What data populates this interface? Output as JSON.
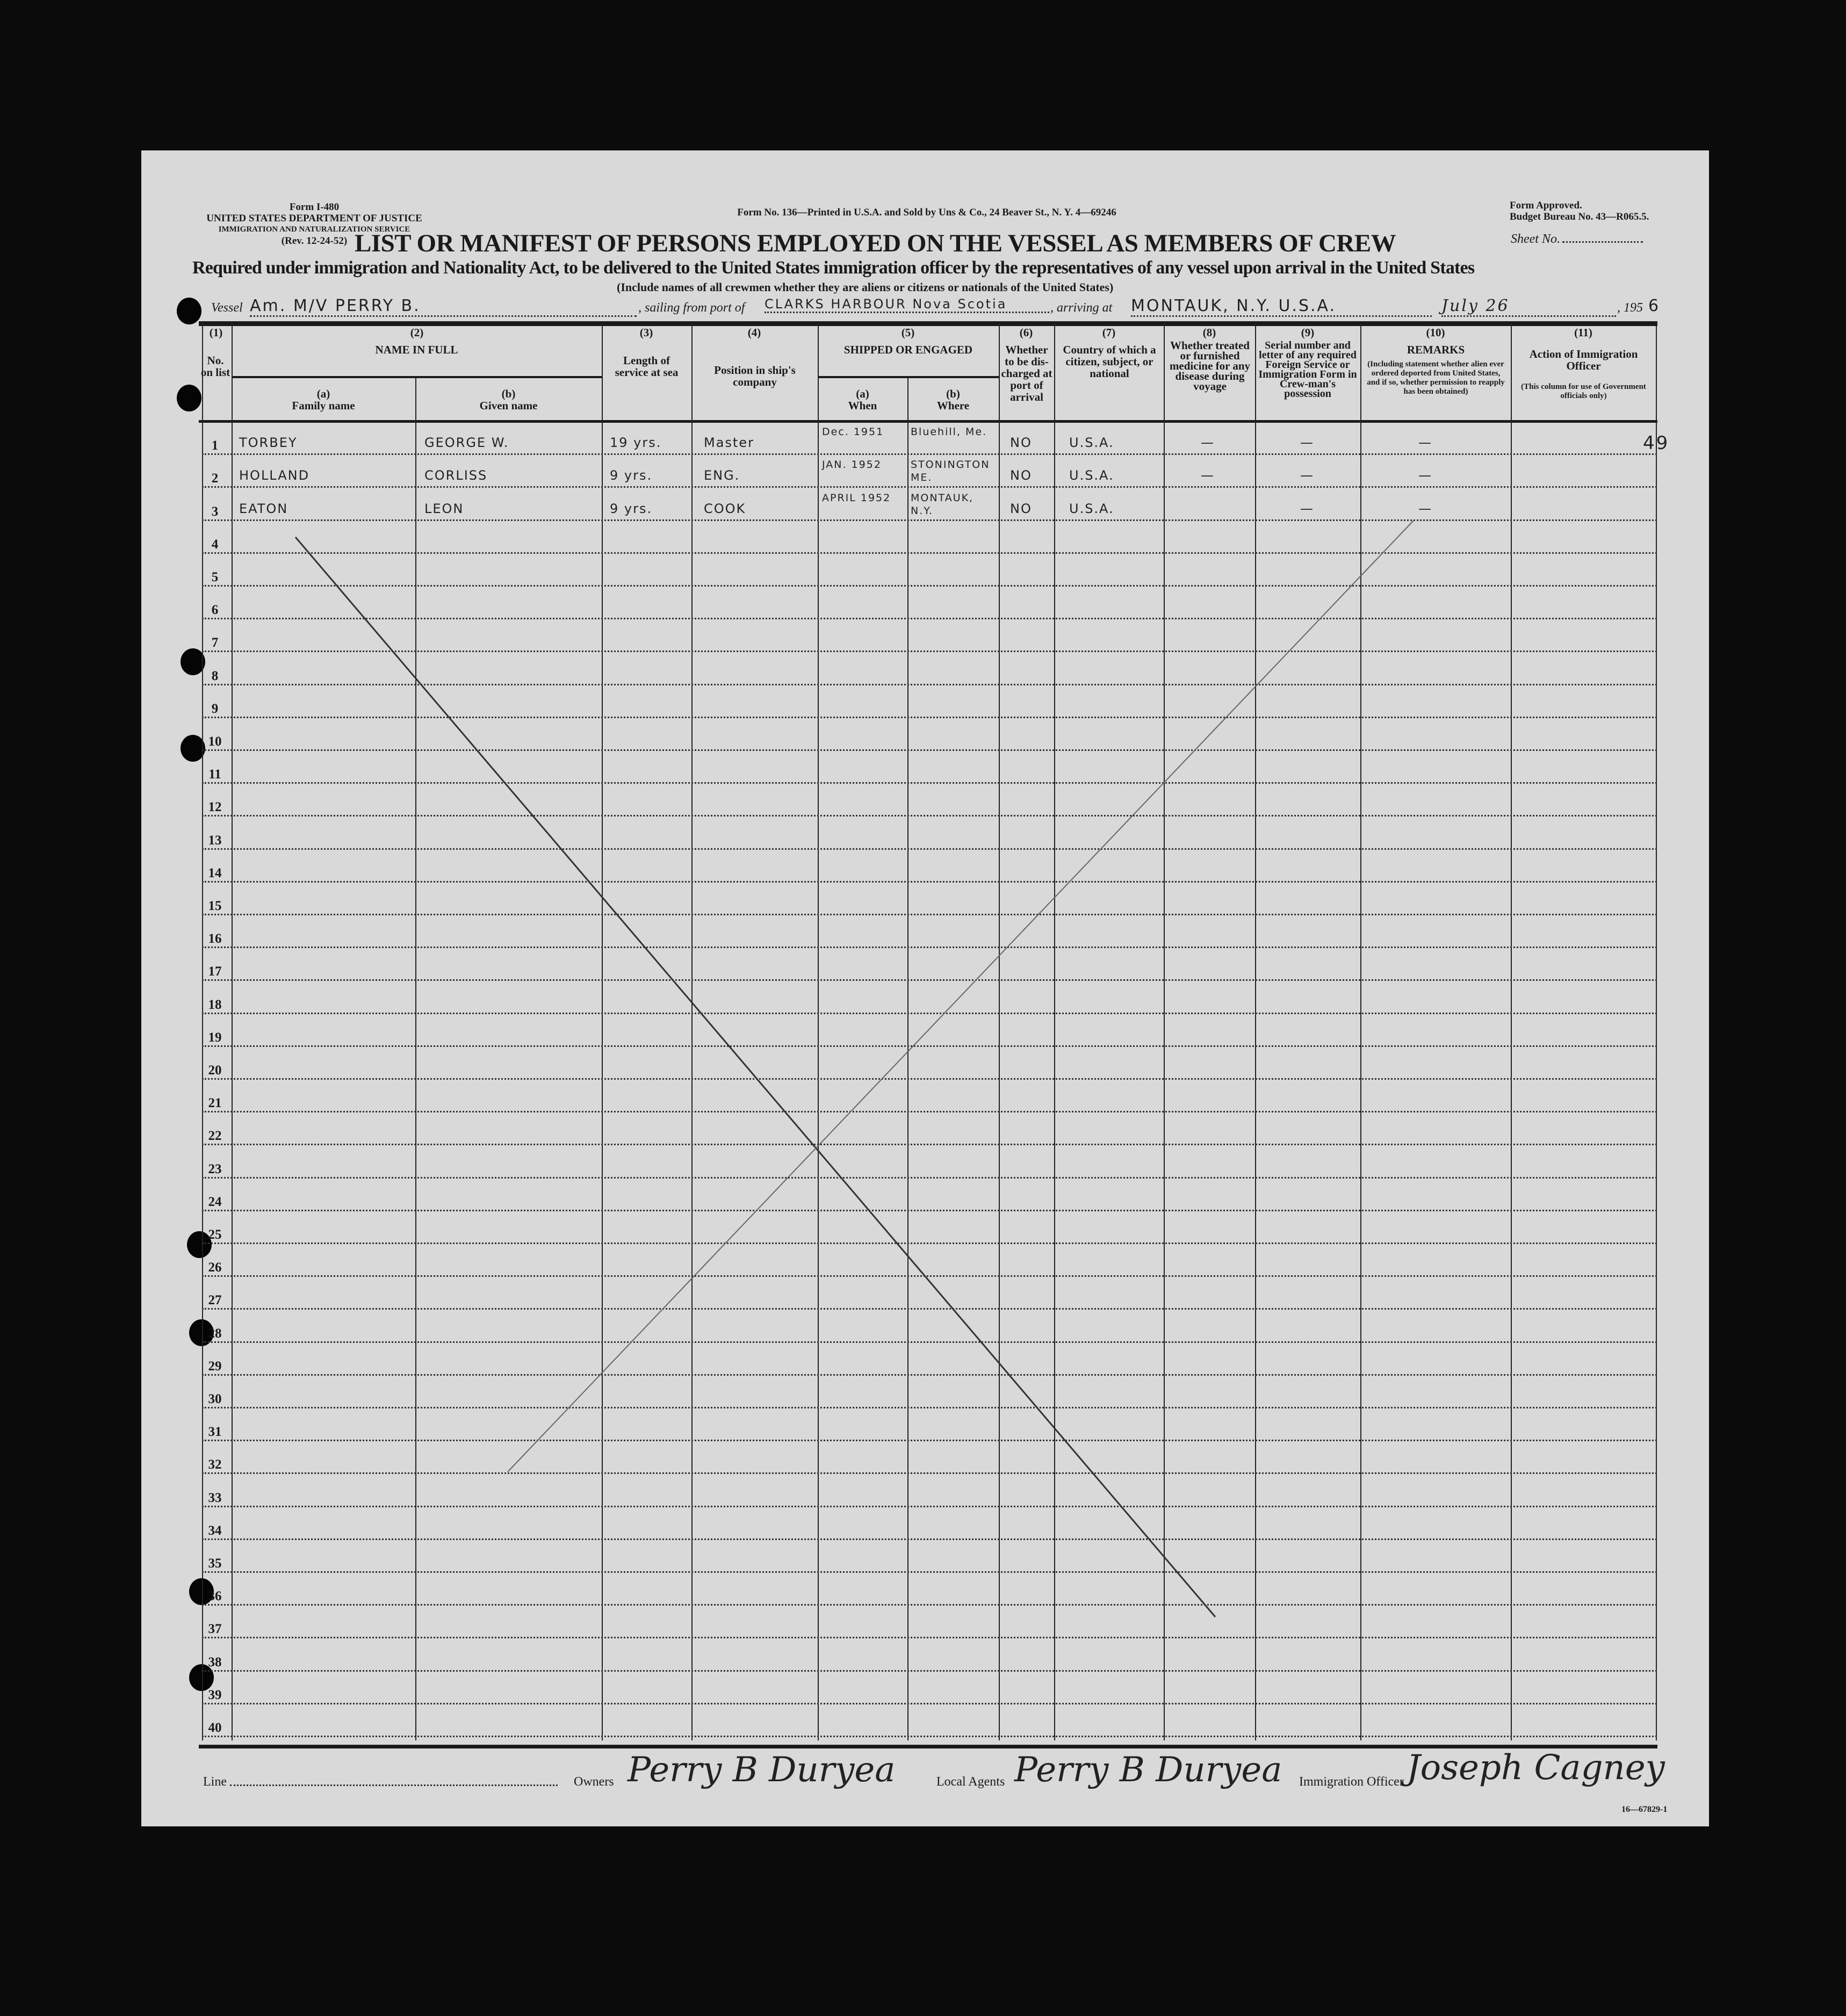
{
  "form_header": {
    "left": [
      "Form I-480",
      "UNITED STATES DEPARTMENT OF JUSTICE",
      "IMMIGRATION AND NATURALIZATION SERVICE",
      "(Rev. 12-24-52)"
    ],
    "center": "Form No. 136—Printed in U.S.A. and Sold by Uns & Co., 24 Beaver St., N. Y. 4—69246",
    "right": [
      "Form Approved.",
      "Budget Bureau No. 43—R065.5."
    ]
  },
  "title": "LIST OR MANIFEST OF PERSONS EMPLOYED ON THE VESSEL AS MEMBERS OF CREW",
  "sheet_label": "Sheet No.",
  "subtitle": "Required under immigration and Nationality Act, to be delivered to the United States immigration officer by the representatives of any vessel upon arrival in the United States",
  "note": "(Include names of all crewmen whether they are aliens or citizens or nationals of the United States)",
  "vessel": {
    "vessel_label": "Vessel",
    "vessel_value": "Am. M/V PERRY B.",
    "sailing_label": ", sailing from port of",
    "sailing_value": "CLARKS HARBOUR Nova Scotia",
    "arriving_label": ", arriving at",
    "arriving_value": "MONTAUK, N.Y. U.S.A.",
    "date_value": "July 26",
    "year_prefix": ", 195",
    "year_suffix": "6"
  },
  "columns": {
    "nums": [
      "(1)",
      "(2)",
      "(3)",
      "(4)",
      "(5)",
      "(6)",
      "(7)",
      "(8)",
      "(9)",
      "(10)",
      "(11)"
    ],
    "no_on_list": "No. on list",
    "name_in_full": "NAME IN FULL",
    "family_sub": "(a)",
    "family": "Family name",
    "given_sub": "(b)",
    "given": "Given name",
    "length": "Length of service at sea",
    "position": "Position in ship's company",
    "shipped": "SHIPPED OR ENGAGED",
    "when_sub": "(a)",
    "when": "When",
    "where_sub": "(b)",
    "where": "Where",
    "discharged": "Whether to be dis-charged at port of arrival",
    "country": "Country of which a citizen, subject, or national",
    "medicine": "Whether treated or furnished medicine for any disease during voyage",
    "serial": "Serial number and letter of any required Foreign Service or Immigration Form in Crew-man's possession",
    "remarks": "REMARKS",
    "remarks_note": "(Including statement whether alien ever ordered deported from United States, and if so, whether permission to reapply has been obtained)",
    "action": "Action of Immigration Officer",
    "action_note": "(This column for use of Government officials only)"
  },
  "row_count": 40,
  "crew": [
    {
      "no": "1",
      "family": "TORBEY",
      "given": "GEORGE W.",
      "length": "19 yrs.",
      "position": "Master",
      "when": "Dec. 1951",
      "where": "Bluehill, Me.",
      "discharged": "NO",
      "country": "U.S.A.",
      "medicine": "—",
      "serial": "—",
      "remarks": "—"
    },
    {
      "no": "2",
      "family": "HOLLAND",
      "given": "CORLISS",
      "length": "9 yrs.",
      "position": "ENG.",
      "when": "JAN. 1952",
      "where": "STONINGTON ME.",
      "discharged": "NO",
      "country": "U.S.A.",
      "medicine": "—",
      "serial": "—",
      "remarks": "—"
    },
    {
      "no": "3",
      "family": "EATON",
      "given": "LEON",
      "length": "9 yrs.",
      "position": "COOK",
      "when": "APRIL 1952",
      "where": "MONTAUK, N.Y.",
      "discharged": "NO",
      "country": "U.S.A.",
      "medicine": "",
      "serial": "—",
      "remarks": "—"
    }
  ],
  "margin_number": "49",
  "footer": {
    "line_label": "Line",
    "owners_label": "Owners",
    "owners_signature": "Perry B Duryea",
    "agents_label": "Local Agents",
    "agents_signature": "Perry B Duryea",
    "officer_label": "Immigration Officer",
    "officer_signature": "Joseph Cagney",
    "form_code": "16—67829-1"
  }
}
